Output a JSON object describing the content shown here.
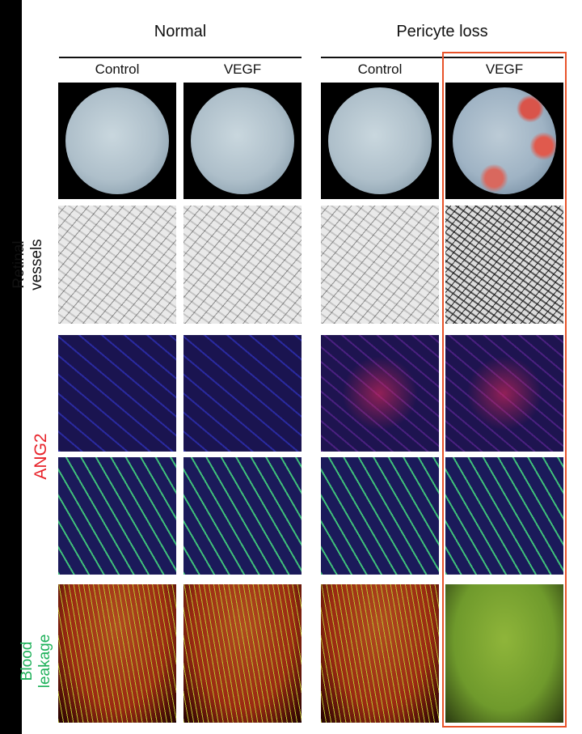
{
  "groups": [
    {
      "label": "Normal"
    },
    {
      "label": "Pericyte loss"
    }
  ],
  "columns": [
    {
      "label": "Control"
    },
    {
      "label": "VEGF"
    },
    {
      "label": "Control"
    },
    {
      "label": "VEGF"
    }
  ],
  "row_labels": {
    "retinal": "Retinal",
    "vessels": "vessels",
    "ang2": "ANG2",
    "blood": "Blood",
    "leakage": "leakage"
  },
  "colors": {
    "ang2_label": "#e8232a",
    "leakage_label": "#1fb15a",
    "highlight_box": "#e8532a"
  }
}
